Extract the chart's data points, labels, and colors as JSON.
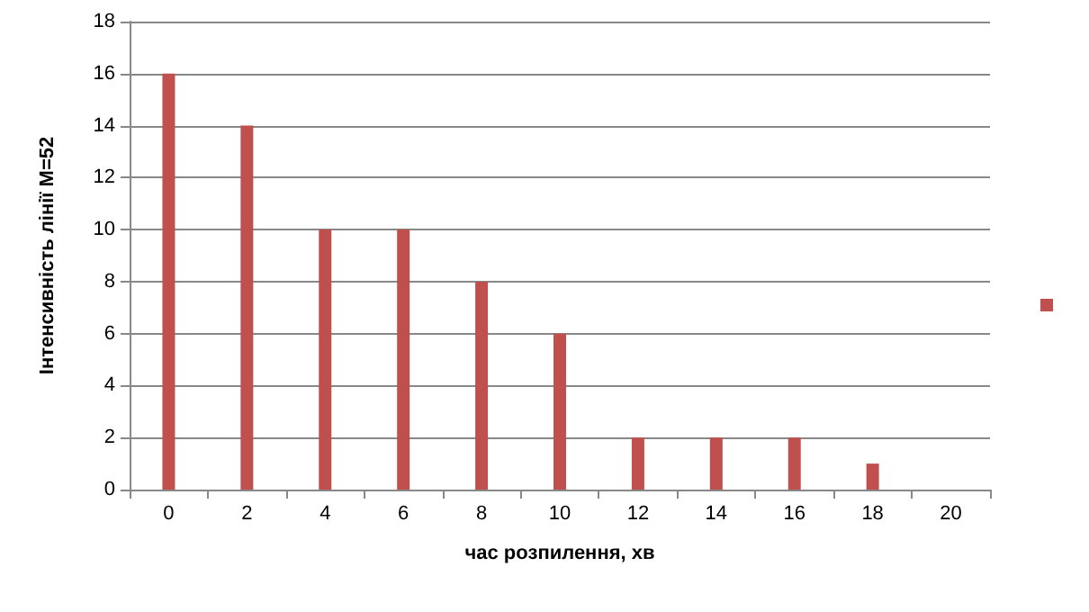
{
  "chart_data": {
    "type": "bar",
    "xlabel": "час розпилення, хв",
    "ylabel": "Інтенсивність лінії M=52",
    "categories": [
      "0",
      "2",
      "4",
      "6",
      "8",
      "10",
      "12",
      "14",
      "16",
      "18",
      "20"
    ],
    "series": [
      {
        "color": "#c0504d",
        "values": [
          16,
          14,
          10,
          10,
          8,
          6,
          2,
          2,
          2,
          1,
          null
        ]
      }
    ],
    "ylim": [
      0,
      18
    ],
    "yticks": [
      0,
      2,
      4,
      6,
      8,
      10,
      12,
      14,
      16,
      18
    ],
    "grid": "y"
  }
}
